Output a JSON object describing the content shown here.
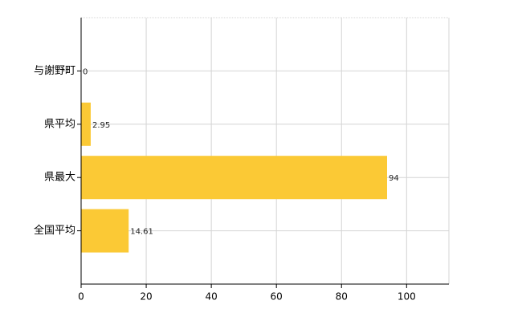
{
  "chart_data": {
    "type": "bar",
    "orientation": "horizontal",
    "categories": [
      "与謝野町",
      "県平均",
      "県最大",
      "全国平均"
    ],
    "values": [
      0,
      2.95,
      94,
      14.61
    ],
    "color": "#fbc935",
    "xlim": [
      0,
      113
    ],
    "xticks": [
      0,
      20,
      40,
      60,
      80,
      100
    ],
    "grid": true
  }
}
